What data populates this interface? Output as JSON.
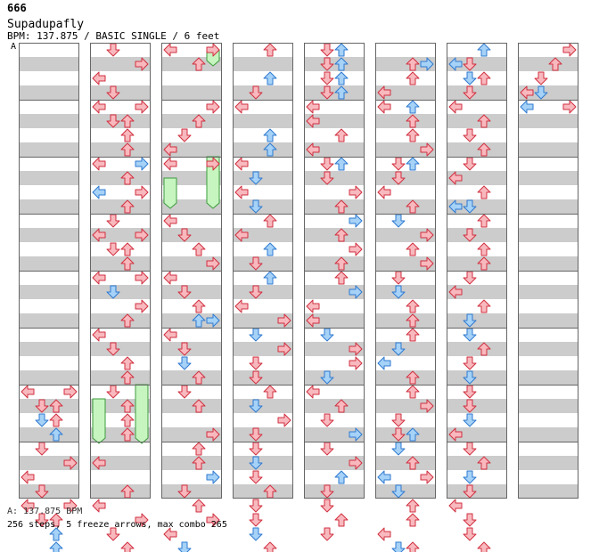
{
  "header": {
    "id": "666",
    "title": "Supadupafly",
    "info": "BPM: 137.875 / BASIC SINGLE / 6 feet",
    "bpm_marker": "A"
  },
  "footer": {
    "bpm_line": "A: 137.875 BPM",
    "stats_line": "256 steps, 5 freeze arrows, max combo 265"
  },
  "colors": {
    "note_red_fill": "#f8b9be",
    "note_red_stroke": "#d03040",
    "note_blue_fill": "#a6d2f7",
    "note_blue_stroke": "#2f7ad0",
    "freeze_fill": "#c6f5c0",
    "freeze_stroke": "#3c9a3c",
    "stripe": "#cccccc",
    "column_border": "#666666"
  },
  "chart": {
    "columns": 8,
    "measures_per_column": 8,
    "rows_per_measure": 4,
    "lanes": [
      "left",
      "down",
      "up",
      "right"
    ],
    "freezes": [
      {
        "column": 2,
        "lane": 3,
        "start": 0.5,
        "end": 1.5
      },
      {
        "column": 2,
        "lane": 0,
        "start": 9.5,
        "end": 11.5
      },
      {
        "column": 2,
        "lane": 3,
        "start": 8.0,
        "end": 11.5
      },
      {
        "column": 1,
        "lane": 0,
        "start": 25.0,
        "end": 28.0
      },
      {
        "column": 1,
        "lane": 3,
        "start": 24.0,
        "end": 28.0
      }
    ],
    "notes": [
      [
        [
          24,
          0,
          "r"
        ],
        [
          24,
          3,
          "r"
        ],
        [
          25,
          1,
          "r"
        ],
        [
          25,
          2,
          "r"
        ],
        [
          26,
          1,
          "b"
        ],
        [
          26,
          2,
          "r"
        ],
        [
          27,
          2,
          "b"
        ],
        [
          28,
          1,
          "r"
        ],
        [
          29,
          3,
          "r"
        ],
        [
          30,
          0,
          "r"
        ],
        [
          31,
          1,
          "r"
        ],
        [
          32,
          0,
          "r"
        ],
        [
          32,
          3,
          "r"
        ],
        [
          33,
          1,
          "r"
        ],
        [
          33,
          2,
          "r"
        ],
        [
          34,
          2,
          "b"
        ],
        [
          35,
          2,
          "b"
        ]
      ],
      [
        [
          0,
          1,
          "r"
        ],
        [
          1,
          3,
          "r"
        ],
        [
          2,
          0,
          "r"
        ],
        [
          3,
          1,
          "r"
        ],
        [
          4,
          0,
          "r"
        ],
        [
          4,
          3,
          "r"
        ],
        [
          5,
          1,
          "r"
        ],
        [
          5,
          2,
          "r"
        ],
        [
          6,
          2,
          "r"
        ],
        [
          7,
          2,
          "r"
        ],
        [
          8,
          0,
          "r"
        ],
        [
          8,
          3,
          "b"
        ],
        [
          9,
          2,
          "r"
        ],
        [
          10,
          0,
          "b"
        ],
        [
          10,
          3,
          "r"
        ],
        [
          11,
          2,
          "r"
        ],
        [
          12,
          1,
          "r"
        ],
        [
          13,
          0,
          "r"
        ],
        [
          13,
          3,
          "r"
        ],
        [
          14,
          1,
          "r"
        ],
        [
          14,
          2,
          "r"
        ],
        [
          15,
          2,
          "r"
        ],
        [
          16,
          0,
          "r"
        ],
        [
          16,
          3,
          "r"
        ],
        [
          17,
          1,
          "b"
        ],
        [
          18,
          3,
          "r"
        ],
        [
          19,
          2,
          "r"
        ],
        [
          20,
          0,
          "r"
        ],
        [
          21,
          1,
          "r"
        ],
        [
          22,
          2,
          "r"
        ],
        [
          23,
          2,
          "r"
        ],
        [
          24,
          1,
          "r"
        ],
        [
          25,
          2,
          "r"
        ],
        [
          26,
          2,
          "r"
        ],
        [
          27,
          2,
          "r"
        ],
        [
          29,
          0,
          "r"
        ],
        [
          31,
          2,
          "r"
        ],
        [
          32,
          0,
          "r"
        ],
        [
          33,
          3,
          "r"
        ],
        [
          34,
          1,
          "r"
        ],
        [
          35,
          2,
          "r"
        ]
      ],
      [
        [
          0,
          0,
          "r"
        ],
        [
          0,
          3,
          "r"
        ],
        [
          1,
          2,
          "r"
        ],
        [
          4,
          3,
          "r"
        ],
        [
          5,
          2,
          "r"
        ],
        [
          6,
          1,
          "r"
        ],
        [
          7,
          0,
          "r"
        ],
        [
          8,
          0,
          "r"
        ],
        [
          8,
          3,
          "r"
        ],
        [
          12,
          0,
          "r"
        ],
        [
          13,
          1,
          "r"
        ],
        [
          14,
          2,
          "r"
        ],
        [
          15,
          3,
          "r"
        ],
        [
          16,
          0,
          "r"
        ],
        [
          17,
          1,
          "r"
        ],
        [
          18,
          2,
          "r"
        ],
        [
          19,
          2,
          "b"
        ],
        [
          19,
          3,
          "b"
        ],
        [
          20,
          0,
          "r"
        ],
        [
          21,
          1,
          "r"
        ],
        [
          22,
          1,
          "b"
        ],
        [
          23,
          2,
          "r"
        ],
        [
          24,
          1,
          "r"
        ],
        [
          25,
          2,
          "r"
        ],
        [
          27,
          3,
          "r"
        ],
        [
          28,
          2,
          "r"
        ],
        [
          29,
          2,
          "r"
        ],
        [
          30,
          3,
          "b"
        ],
        [
          31,
          1,
          "r"
        ],
        [
          32,
          2,
          "r"
        ],
        [
          33,
          3,
          "r"
        ],
        [
          34,
          0,
          "r"
        ],
        [
          35,
          1,
          "b"
        ]
      ],
      [
        [
          0,
          2,
          "r"
        ],
        [
          2,
          2,
          "b"
        ],
        [
          3,
          1,
          "r"
        ],
        [
          4,
          0,
          "r"
        ],
        [
          6,
          2,
          "b"
        ],
        [
          7,
          2,
          "b"
        ],
        [
          8,
          0,
          "r"
        ],
        [
          9,
          1,
          "b"
        ],
        [
          10,
          0,
          "r"
        ],
        [
          11,
          1,
          "b"
        ],
        [
          12,
          2,
          "r"
        ],
        [
          13,
          0,
          "r"
        ],
        [
          14,
          2,
          "b"
        ],
        [
          15,
          1,
          "r"
        ],
        [
          16,
          2,
          "b"
        ],
        [
          17,
          1,
          "r"
        ],
        [
          18,
          0,
          "r"
        ],
        [
          19,
          3,
          "r"
        ],
        [
          20,
          1,
          "b"
        ],
        [
          21,
          3,
          "r"
        ],
        [
          22,
          1,
          "r"
        ],
        [
          23,
          1,
          "r"
        ],
        [
          24,
          2,
          "r"
        ],
        [
          25,
          1,
          "b"
        ],
        [
          26,
          3,
          "r"
        ],
        [
          27,
          1,
          "r"
        ],
        [
          28,
          1,
          "r"
        ],
        [
          29,
          1,
          "b"
        ],
        [
          30,
          1,
          "r"
        ],
        [
          31,
          2,
          "r"
        ],
        [
          32,
          1,
          "r"
        ],
        [
          33,
          1,
          "r"
        ],
        [
          34,
          1,
          "b"
        ],
        [
          35,
          2,
          "r"
        ]
      ],
      [
        [
          0,
          1,
          "r"
        ],
        [
          0,
          2,
          "b"
        ],
        [
          1,
          1,
          "r"
        ],
        [
          1,
          2,
          "b"
        ],
        [
          2,
          1,
          "r"
        ],
        [
          2,
          2,
          "b"
        ],
        [
          3,
          1,
          "r"
        ],
        [
          3,
          2,
          "b"
        ],
        [
          4,
          0,
          "r"
        ],
        [
          5,
          0,
          "r"
        ],
        [
          6,
          2,
          "r"
        ],
        [
          7,
          0,
          "r"
        ],
        [
          8,
          2,
          "b"
        ],
        [
          8,
          1,
          "r"
        ],
        [
          9,
          1,
          "r"
        ],
        [
          10,
          3,
          "r"
        ],
        [
          11,
          2,
          "r"
        ],
        [
          12,
          3,
          "b"
        ],
        [
          13,
          2,
          "r"
        ],
        [
          14,
          3,
          "r"
        ],
        [
          15,
          2,
          "r"
        ],
        [
          16,
          2,
          "r"
        ],
        [
          17,
          3,
          "b"
        ],
        [
          18,
          0,
          "r"
        ],
        [
          19,
          0,
          "r"
        ],
        [
          20,
          1,
          "b"
        ],
        [
          21,
          3,
          "r"
        ],
        [
          22,
          3,
          "r"
        ],
        [
          23,
          1,
          "b"
        ],
        [
          24,
          0,
          "r"
        ],
        [
          25,
          2,
          "r"
        ],
        [
          26,
          1,
          "r"
        ],
        [
          27,
          3,
          "b"
        ],
        [
          28,
          1,
          "r"
        ],
        [
          29,
          3,
          "r"
        ],
        [
          30,
          2,
          "b"
        ],
        [
          31,
          1,
          "r"
        ],
        [
          32,
          1,
          "r"
        ],
        [
          33,
          2,
          "r"
        ],
        [
          34,
          1,
          "r"
        ]
      ],
      [
        [
          1,
          2,
          "r"
        ],
        [
          1,
          3,
          "b"
        ],
        [
          2,
          2,
          "r"
        ],
        [
          3,
          0,
          "r"
        ],
        [
          4,
          2,
          "b"
        ],
        [
          4,
          0,
          "r"
        ],
        [
          5,
          2,
          "r"
        ],
        [
          6,
          2,
          "r"
        ],
        [
          7,
          3,
          "r"
        ],
        [
          8,
          1,
          "r"
        ],
        [
          8,
          2,
          "b"
        ],
        [
          9,
          1,
          "r"
        ],
        [
          10,
          0,
          "r"
        ],
        [
          11,
          2,
          "r"
        ],
        [
          12,
          1,
          "b"
        ],
        [
          13,
          3,
          "r"
        ],
        [
          14,
          2,
          "r"
        ],
        [
          15,
          3,
          "r"
        ],
        [
          16,
          1,
          "r"
        ],
        [
          17,
          1,
          "b"
        ],
        [
          18,
          2,
          "r"
        ],
        [
          19,
          2,
          "r"
        ],
        [
          20,
          2,
          "r"
        ],
        [
          21,
          1,
          "b"
        ],
        [
          22,
          0,
          "b"
        ],
        [
          23,
          2,
          "r"
        ],
        [
          24,
          2,
          "r"
        ],
        [
          25,
          3,
          "r"
        ],
        [
          26,
          1,
          "r"
        ],
        [
          27,
          2,
          "b"
        ],
        [
          27,
          1,
          "r"
        ],
        [
          28,
          1,
          "b"
        ],
        [
          29,
          2,
          "r"
        ],
        [
          30,
          0,
          "b"
        ],
        [
          30,
          3,
          "r"
        ],
        [
          31,
          1,
          "b"
        ],
        [
          32,
          2,
          "r"
        ],
        [
          33,
          2,
          "r"
        ],
        [
          34,
          0,
          "r"
        ],
        [
          35,
          1,
          "b"
        ],
        [
          35,
          2,
          "r"
        ]
      ],
      [
        [
          0,
          2,
          "b"
        ],
        [
          1,
          1,
          "r"
        ],
        [
          1,
          0,
          "b"
        ],
        [
          2,
          1,
          "b"
        ],
        [
          2,
          2,
          "r"
        ],
        [
          3,
          1,
          "r"
        ],
        [
          4,
          0,
          "r"
        ],
        [
          5,
          2,
          "r"
        ],
        [
          6,
          1,
          "r"
        ],
        [
          7,
          2,
          "r"
        ],
        [
          8,
          1,
          "r"
        ],
        [
          9,
          0,
          "r"
        ],
        [
          10,
          2,
          "r"
        ],
        [
          11,
          1,
          "b"
        ],
        [
          11,
          0,
          "b"
        ],
        [
          12,
          2,
          "r"
        ],
        [
          13,
          1,
          "r"
        ],
        [
          14,
          2,
          "r"
        ],
        [
          15,
          2,
          "r"
        ],
        [
          16,
          1,
          "r"
        ],
        [
          17,
          0,
          "r"
        ],
        [
          18,
          2,
          "r"
        ],
        [
          19,
          1,
          "b"
        ],
        [
          20,
          1,
          "b"
        ],
        [
          21,
          2,
          "r"
        ],
        [
          22,
          1,
          "r"
        ],
        [
          23,
          1,
          "b"
        ],
        [
          24,
          1,
          "r"
        ],
        [
          25,
          1,
          "r"
        ],
        [
          26,
          1,
          "b"
        ],
        [
          27,
          0,
          "r"
        ],
        [
          28,
          1,
          "r"
        ],
        [
          29,
          2,
          "r"
        ],
        [
          30,
          1,
          "b"
        ],
        [
          31,
          1,
          "r"
        ],
        [
          32,
          0,
          "r"
        ],
        [
          33,
          1,
          "r"
        ],
        [
          34,
          1,
          "r"
        ],
        [
          35,
          2,
          "r"
        ]
      ],
      [
        [
          0,
          3,
          "r"
        ],
        [
          1,
          2,
          "r"
        ],
        [
          2,
          1,
          "r"
        ],
        [
          3,
          0,
          "r"
        ],
        [
          3,
          1,
          "b"
        ],
        [
          4,
          0,
          "b"
        ],
        [
          4,
          3,
          "r"
        ]
      ]
    ]
  }
}
